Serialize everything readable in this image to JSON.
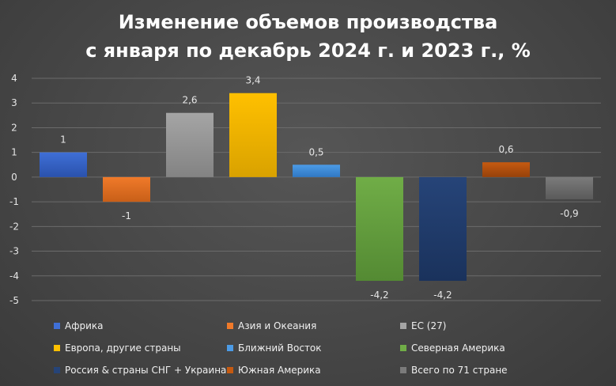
{
  "chart_data": {
    "type": "bar",
    "title_lines": [
      "Изменение объемов производства",
      "с января по декабрь 2024 г. и 2023 г., %"
    ],
    "xlabel": "",
    "ylabel": "",
    "ylim": [
      -5,
      4
    ],
    "yticks": [
      4,
      3,
      2,
      1,
      0,
      -1,
      -2,
      -3,
      -4,
      -5
    ],
    "grid": true,
    "legend_position": "bottom",
    "categories": [
      "Африка",
      "Азия и Океания",
      "ЕС (27)",
      "Европа, другие страны",
      "Ближний Восток",
      "Северная Америка",
      "Россия & страны СНГ + Украина",
      "Южная Америка",
      "Всего по 71 стране"
    ],
    "values": [
      1,
      -1,
      2.6,
      3.4,
      0.5,
      -4.2,
      -4.2,
      0.6,
      -0.9
    ],
    "value_labels": [
      "1",
      "-1",
      "2,6",
      "3,4",
      "0,5",
      "-4,2",
      "-4,2",
      "0,6",
      "-0,9"
    ],
    "colors": [
      "#3f6fd6",
      "#f07a2a",
      "#a5a5a5",
      "#ffc000",
      "#4c9be6",
      "#70ad47",
      "#264478",
      "#c55a11",
      "#7b7b7b"
    ],
    "colors_dark": [
      "#2a52ad",
      "#c85f18",
      "#838383",
      "#d9a200",
      "#3078c4",
      "#548a33",
      "#1a325c",
      "#96420a",
      "#5a5a5a"
    ]
  }
}
